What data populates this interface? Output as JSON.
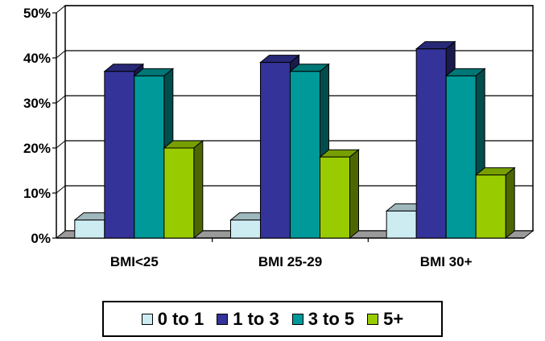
{
  "chart_data": {
    "type": "bar",
    "style": "3d-clustered-column",
    "categories": [
      "BMI<25",
      "BMI 25-29",
      "BMI 30+"
    ],
    "series": [
      {
        "name": "0 to 1",
        "values": [
          4,
          4,
          6
        ],
        "color": "#CCECF2"
      },
      {
        "name": "1 to 3",
        "values": [
          37,
          39,
          42
        ],
        "color": "#333399"
      },
      {
        "name": "3 to 5",
        "values": [
          36,
          37,
          36
        ],
        "color": "#009999"
      },
      {
        "name": "5+",
        "values": [
          20,
          18,
          14
        ],
        "color": "#99CC00"
      }
    ],
    "ylim": [
      0,
      50
    ],
    "y_ticks": [
      "0%",
      "10%",
      "20%",
      "30%",
      "40%",
      "50%"
    ],
    "y_tick_values": [
      0,
      10,
      20,
      30,
      40,
      50
    ],
    "grid": true,
    "legend": "bottom"
  }
}
